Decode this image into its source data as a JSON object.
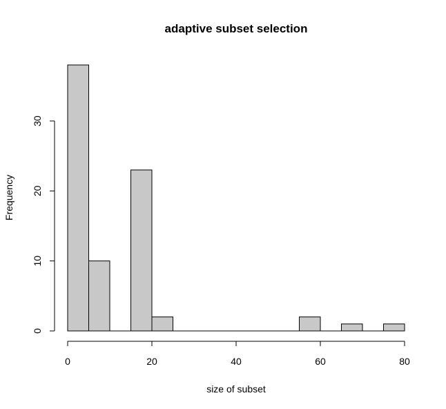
{
  "chart_data": {
    "type": "bar",
    "title": "adaptive subset selection",
    "xlabel": "size of subset",
    "ylabel": "Frequency",
    "bins": [
      {
        "start": 0,
        "end": 5,
        "count": 38
      },
      {
        "start": 5,
        "end": 10,
        "count": 10
      },
      {
        "start": 10,
        "end": 15,
        "count": 0
      },
      {
        "start": 15,
        "end": 20,
        "count": 23
      },
      {
        "start": 20,
        "end": 25,
        "count": 2
      },
      {
        "start": 25,
        "end": 30,
        "count": 0
      },
      {
        "start": 30,
        "end": 35,
        "count": 0
      },
      {
        "start": 35,
        "end": 40,
        "count": 0
      },
      {
        "start": 40,
        "end": 45,
        "count": 0
      },
      {
        "start": 45,
        "end": 50,
        "count": 0
      },
      {
        "start": 50,
        "end": 55,
        "count": 0
      },
      {
        "start": 55,
        "end": 60,
        "count": 2
      },
      {
        "start": 60,
        "end": 65,
        "count": 0
      },
      {
        "start": 65,
        "end": 70,
        "count": 1
      },
      {
        "start": 70,
        "end": 75,
        "count": 0
      },
      {
        "start": 75,
        "end": 80,
        "count": 1
      }
    ],
    "xlim": [
      0,
      80
    ],
    "ylim": [
      0,
      38
    ],
    "xticks": [
      0,
      20,
      40,
      60,
      80
    ],
    "yticks": [
      0,
      10,
      20,
      30
    ],
    "grid": false,
    "colors": {
      "bar_fill": "#c8c8c8",
      "bar_stroke": "#000000"
    }
  }
}
